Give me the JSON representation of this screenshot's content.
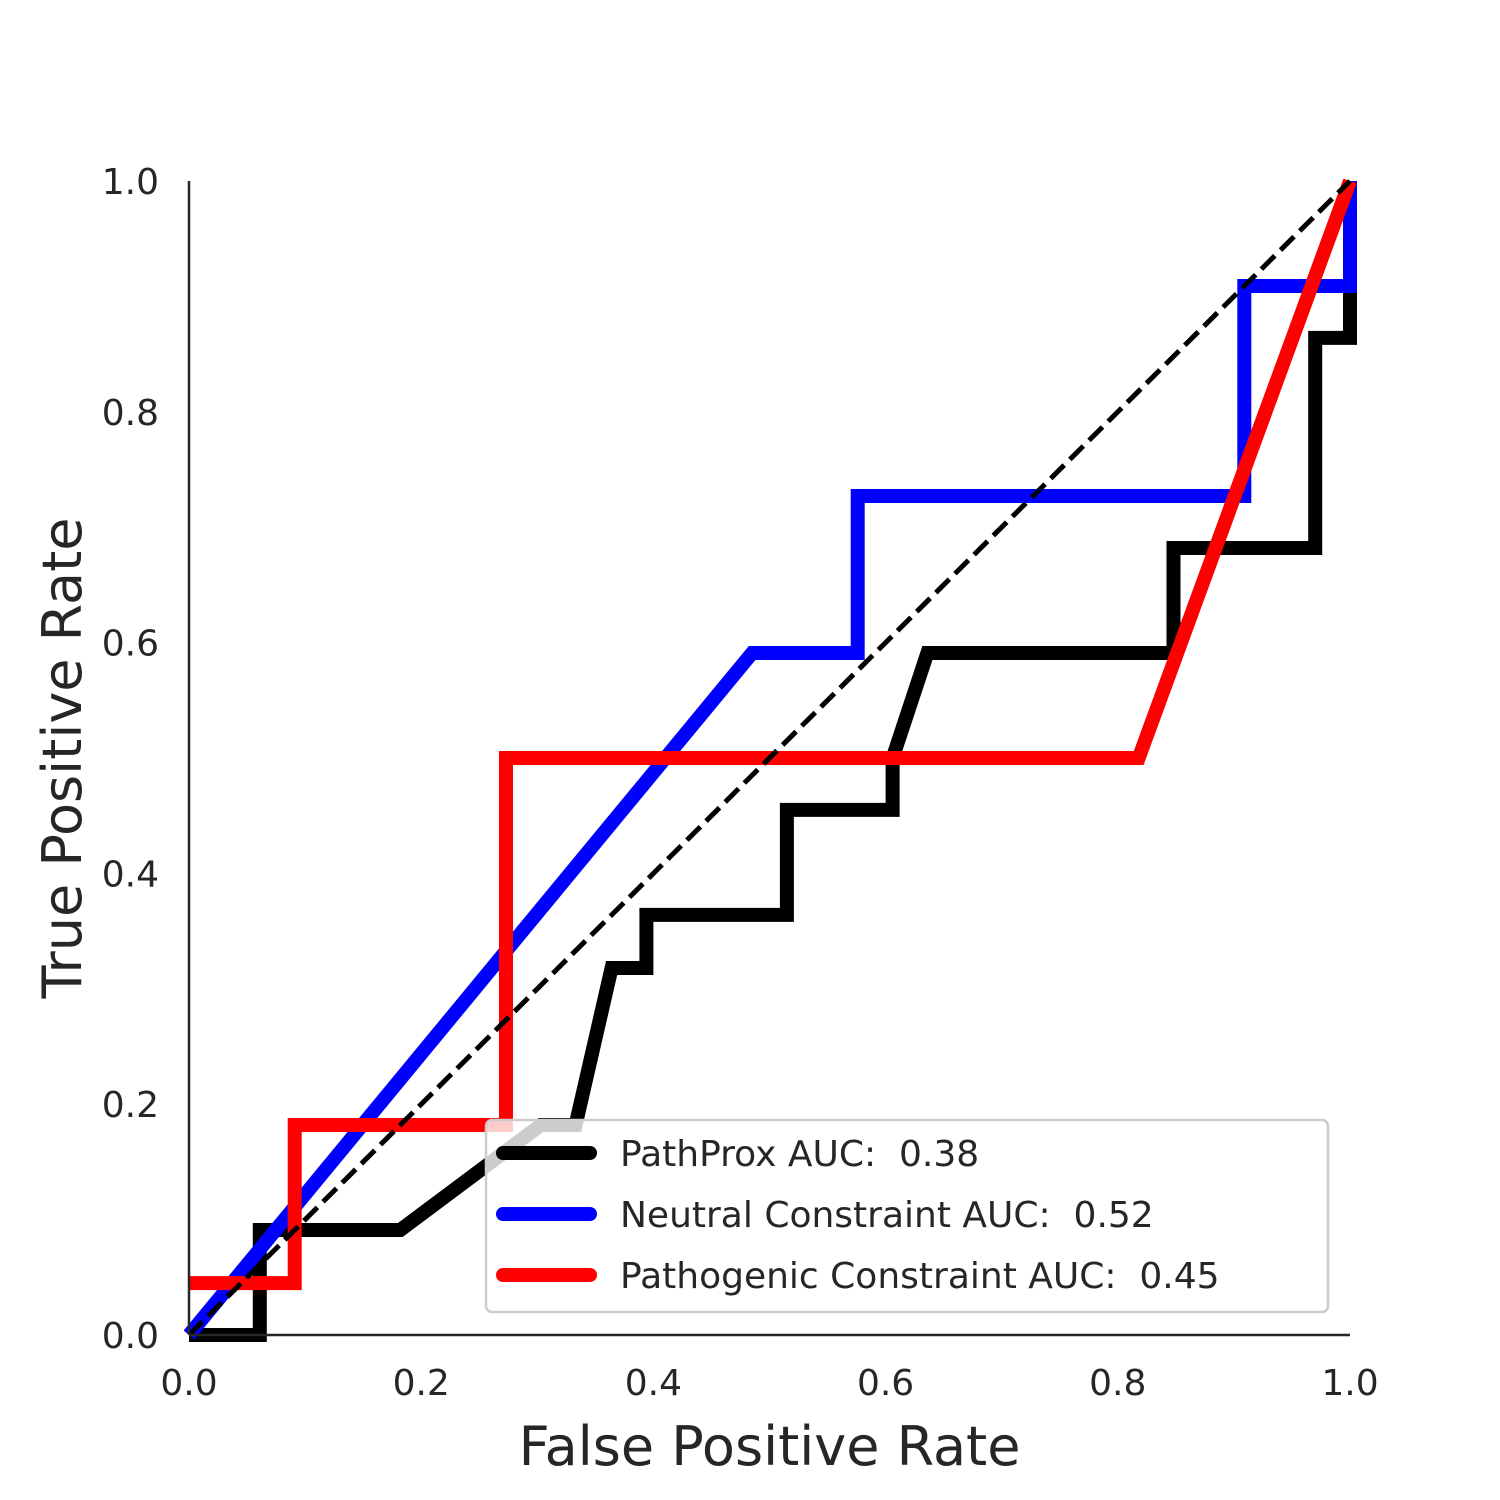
{
  "chart_data": {
    "type": "line",
    "title": "",
    "xlabel": "False Positive Rate",
    "ylabel": "True Positive Rate",
    "xlim": [
      0.0,
      1.0
    ],
    "ylim": [
      0.0,
      1.0
    ],
    "xticks": [
      "0.0",
      "0.2",
      "0.4",
      "0.6",
      "0.8",
      "1.0"
    ],
    "yticks": [
      "0.0",
      "0.2",
      "0.4",
      "0.6",
      "0.8",
      "1.0"
    ],
    "grid": false,
    "legend_position": "lower-right",
    "diagonal": {
      "style": "dashed",
      "color": "#000000",
      "points": [
        [
          0.0,
          0.0
        ],
        [
          1.0,
          1.0
        ]
      ]
    },
    "series": [
      {
        "name": "PathProx AUC:  0.38",
        "color": "#000000",
        "points": [
          [
            0.0,
            0.0
          ],
          [
            0.061,
            0.0
          ],
          [
            0.061,
            0.091
          ],
          [
            0.182,
            0.091
          ],
          [
            0.303,
            0.182
          ],
          [
            0.333,
            0.182
          ],
          [
            0.364,
            0.318
          ],
          [
            0.394,
            0.318
          ],
          [
            0.394,
            0.364
          ],
          [
            0.515,
            0.364
          ],
          [
            0.515,
            0.455
          ],
          [
            0.606,
            0.455
          ],
          [
            0.606,
            0.5
          ],
          [
            0.636,
            0.591
          ],
          [
            0.848,
            0.591
          ],
          [
            0.848,
            0.682
          ],
          [
            0.97,
            0.682
          ],
          [
            0.97,
            0.864
          ],
          [
            1.0,
            0.864
          ],
          [
            1.0,
            1.0
          ]
        ]
      },
      {
        "name": "Neutral Constraint AUC:  0.52",
        "color": "#0000ff",
        "points": [
          [
            0.0,
            0.0
          ],
          [
            0.485,
            0.591
          ],
          [
            0.576,
            0.591
          ],
          [
            0.576,
            0.727
          ],
          [
            0.909,
            0.727
          ],
          [
            0.909,
            0.909
          ],
          [
            1.0,
            0.909
          ],
          [
            1.0,
            1.0
          ]
        ]
      },
      {
        "name": "Pathogenic Constraint AUC:  0.45",
        "color": "#ff0000",
        "points": [
          [
            0.0,
            0.045
          ],
          [
            0.091,
            0.045
          ],
          [
            0.091,
            0.182
          ],
          [
            0.273,
            0.182
          ],
          [
            0.273,
            0.5
          ],
          [
            0.818,
            0.5
          ],
          [
            1.0,
            1.0
          ]
        ]
      }
    ]
  }
}
